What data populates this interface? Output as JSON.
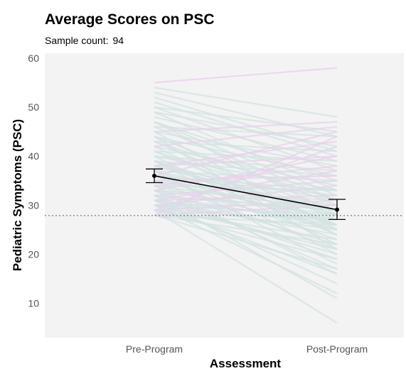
{
  "chart_data": {
    "type": "line",
    "title": "Average Scores on PSC",
    "subtitle_label": "Sample count:",
    "sample_count": "94",
    "xlabel": "Assessment",
    "ylabel": "Pediatric Symptoms (PSC)",
    "categories": [
      "Pre-Program",
      "Post-Program"
    ],
    "ylim": [
      3,
      61
    ],
    "yticks": [
      10,
      20,
      30,
      40,
      50,
      60
    ],
    "reference_line": 27.9,
    "mean": {
      "values": [
        36.0,
        29.1
      ],
      "error_low": [
        34.6,
        27.1
      ],
      "error_high": [
        37.4,
        31.2
      ]
    },
    "individual_series": {
      "colors": {
        "decrease": "#d3e2e2",
        "increase": "#e8d0ec"
      },
      "pairs": [
        [
          55,
          58
        ],
        [
          54,
          48
        ],
        [
          53,
          44
        ],
        [
          52,
          41
        ],
        [
          51,
          40
        ],
        [
          50,
          45
        ],
        [
          50,
          37
        ],
        [
          49,
          42
        ],
        [
          49,
          33
        ],
        [
          48,
          39
        ],
        [
          47,
          35
        ],
        [
          47,
          28
        ],
        [
          46,
          44
        ],
        [
          46,
          31
        ],
        [
          45,
          38
        ],
        [
          45,
          25
        ],
        [
          44,
          36
        ],
        [
          44,
          30
        ],
        [
          43,
          41
        ],
        [
          43,
          27
        ],
        [
          42,
          34
        ],
        [
          42,
          24
        ],
        [
          41,
          39
        ],
        [
          41,
          29
        ],
        [
          40,
          37
        ],
        [
          40,
          22
        ],
        [
          40,
          33
        ],
        [
          39,
          36
        ],
        [
          39,
          26
        ],
        [
          39,
          20
        ],
        [
          38,
          43
        ],
        [
          38,
          31
        ],
        [
          38,
          28
        ],
        [
          37,
          35
        ],
        [
          37,
          25
        ],
        [
          37,
          18
        ],
        [
          36,
          32
        ],
        [
          36,
          45
        ],
        [
          36,
          23
        ],
        [
          35,
          30
        ],
        [
          35,
          27
        ],
        [
          35,
          21
        ],
        [
          34,
          38
        ],
        [
          34,
          33
        ],
        [
          34,
          25
        ],
        [
          34,
          16
        ],
        [
          33,
          31
        ],
        [
          33,
          28
        ],
        [
          33,
          22
        ],
        [
          33,
          40
        ],
        [
          32,
          35
        ],
        [
          32,
          29
        ],
        [
          32,
          26
        ],
        [
          32,
          19
        ],
        [
          31,
          32
        ],
        [
          31,
          27
        ],
        [
          31,
          24
        ],
        [
          31,
          14
        ],
        [
          31,
          37
        ],
        [
          30,
          30
        ],
        [
          30,
          28
        ],
        [
          30,
          25
        ],
        [
          30,
          21
        ],
        [
          30,
          12
        ],
        [
          30,
          34
        ],
        [
          29,
          31
        ],
        [
          29,
          27
        ],
        [
          29,
          23
        ],
        [
          29,
          19
        ],
        [
          29,
          6
        ],
        [
          29,
          42
        ],
        [
          28,
          26
        ],
        [
          28,
          22
        ],
        [
          28,
          17
        ],
        [
          28,
          30
        ],
        [
          28,
          44
        ],
        [
          36,
          33
        ],
        [
          38,
          40
        ],
        [
          42,
          46
        ],
        [
          45,
          47
        ],
        [
          47,
          32
        ],
        [
          44,
          21
        ],
        [
          41,
          26
        ],
        [
          39,
          24
        ],
        [
          37,
          29
        ],
        [
          35,
          36
        ],
        [
          33,
          17
        ],
        [
          32,
          11
        ],
        [
          31,
          20
        ],
        [
          30,
          16
        ],
        [
          34,
          29
        ],
        [
          36,
          26
        ],
        [
          39,
          28
        ],
        [
          43,
          31
        ]
      ]
    }
  }
}
